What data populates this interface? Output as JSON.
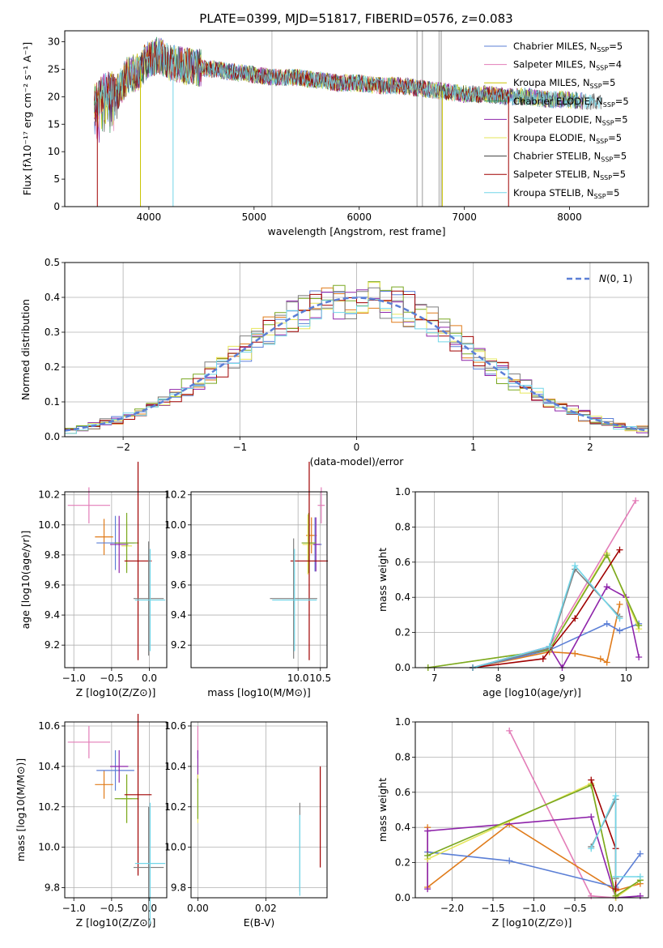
{
  "figure": {
    "title": "PLATE=0399, MJD=51817, FIBERID=0576, z=0.083"
  },
  "colors": {
    "chabrier_miles": "#5b7fd6",
    "salpeter_miles": "#e37db8",
    "kroupa_miles": "#c9c400",
    "chabrier_elodie": "#2e8b57",
    "salpeter_elodie": "#8e24aa",
    "kroupa_elodie": "#e6e65a",
    "chabrier_stelib": "#404040",
    "salpeter_stelib": "#a00000",
    "kroupa_stelib": "#72d6e8",
    "miles_blue": "#5b7fd6",
    "orange": "#e07b1a",
    "olive": "#7aa822",
    "grey": "#7f7f7f"
  },
  "chart_data": [
    {
      "type": "line",
      "id": "spectrum",
      "title": "PLATE=0399, MJD=51817, FIBERID=0576, z=0.083",
      "xlabel": "wavelength [Angstrom, rest frame]",
      "ylabel": "Flux [fλ10⁻¹⁷ erg cm⁻² s⁻¹ A⁻¹]",
      "xlim": [
        3200,
        8750
      ],
      "ylim": [
        0,
        32
      ],
      "xticks": [
        4000,
        5000,
        6000,
        7000,
        8000
      ],
      "yticks": [
        0,
        5,
        10,
        15,
        20,
        25,
        30
      ],
      "grid": false,
      "legend_position": "right",
      "continuum": {
        "x": [
          3500,
          3600,
          3700,
          3800,
          3900,
          4000,
          4100,
          4200,
          4400,
          4600,
          4800,
          5000,
          5200,
          5400,
          5600,
          5800,
          6000,
          6200,
          6400,
          6600,
          6800,
          7000,
          7200,
          7400,
          7600,
          7800,
          8000,
          8200,
          8300
        ],
        "y": [
          19.5,
          21.5,
          21,
          24,
          24.5,
          27,
          27.5,
          26,
          25.5,
          25,
          24.5,
          24,
          23.5,
          23.5,
          23,
          22.5,
          22.5,
          22,
          22,
          21.5,
          21,
          20.5,
          20.5,
          20,
          20,
          19.5,
          19.5,
          19,
          19
        ]
      },
      "series": [
        {
          "name": "Chabrier MILES, N_SSP=5",
          "color_key": "chabrier_miles"
        },
        {
          "name": "Salpeter MILES, N_SSP=4",
          "color_key": "salpeter_miles"
        },
        {
          "name": "Kroupa MILES, N_SSP=5",
          "color_key": "kroupa_miles"
        },
        {
          "name": "Chabrier ELODIE, N_SSP=5",
          "color_key": "chabrier_elodie"
        },
        {
          "name": "Salpeter ELODIE, N_SSP=5",
          "color_key": "salpeter_elodie"
        },
        {
          "name": "Kroupa ELODIE, N_SSP=5",
          "color_key": "kroupa_elodie"
        },
        {
          "name": "Chabrier STELIB, N_SSP=5",
          "color_key": "chabrier_stelib"
        },
        {
          "name": "Salpeter STELIB, N_SSP=5",
          "color_key": "salpeter_stelib"
        },
        {
          "name": "Kroupa STELIB, N_SSP=5",
          "color_key": "kroupa_stelib"
        }
      ]
    },
    {
      "type": "step",
      "id": "residuals",
      "xlabel": "(data-model)/error",
      "ylabel": "Normed distribution",
      "xlim": [
        -2.5,
        2.5
      ],
      "ylim": [
        0,
        0.5
      ],
      "xticks": [
        -2,
        -1,
        0,
        1,
        2
      ],
      "yticks": [
        0.0,
        0.1,
        0.2,
        0.3,
        0.4,
        0.5
      ],
      "grid": true,
      "legend_position": "top-right",
      "reference": {
        "name": "N(0,1)",
        "color_key": "miles_blue"
      },
      "bin_width": 0.1,
      "histogram_colors": [
        "chabrier_miles",
        "orange",
        "olive",
        "salpeter_elodie",
        "kroupa_elodie",
        "grey",
        "salpeter_stelib",
        "kroupa_stelib"
      ]
    },
    {
      "type": "scatter",
      "id": "age_vs_z",
      "xlabel": "Z [log10(Z/Z⊙)]",
      "ylabel": "age  [log10(age/yr)]",
      "xlim": [
        -1.12,
        0.23
      ],
      "ylim": [
        9.05,
        10.22
      ],
      "xticks": [
        -1.0,
        -0.5,
        0.0
      ],
      "yticks": [
        9.2,
        9.4,
        9.6,
        9.8,
        10.0,
        10.2
      ],
      "grid": true,
      "points": [
        {
          "x": -0.8,
          "y": 10.13,
          "xerr": 0.28,
          "yerr": 0.12,
          "color_key": "salpeter_miles"
        },
        {
          "x": -0.6,
          "y": 9.92,
          "xerr": 0.12,
          "yerr": 0.12,
          "color_key": "orange"
        },
        {
          "x": -0.45,
          "y": 9.88,
          "xerr": 0.25,
          "yerr": 0.18,
          "color_key": "chabrier_miles"
        },
        {
          "x": -0.4,
          "y": 9.87,
          "xerr": 0.12,
          "yerr": 0.19,
          "color_key": "salpeter_elodie"
        },
        {
          "x": -0.3,
          "y": 9.86,
          "xerr": 0.07,
          "yerr": 0.16,
          "color_key": "kroupa_elodie"
        },
        {
          "x": -0.3,
          "y": 9.88,
          "xerr": 0.16,
          "yerr": 0.2,
          "color_key": "olive"
        },
        {
          "x": -0.15,
          "y": 9.76,
          "xerr": 0.18,
          "yerr": 0.66,
          "color_key": "salpeter_stelib"
        },
        {
          "x": -0.01,
          "y": 9.51,
          "xerr": 0.2,
          "yerr": 0.38,
          "color_key": "grey"
        },
        {
          "x": 0.01,
          "y": 9.5,
          "xerr": 0.2,
          "yerr": 0.34,
          "color_key": "kroupa_stelib"
        }
      ]
    },
    {
      "type": "scatter",
      "id": "age_vs_mass",
      "xlabel": "mass [log10(M/M⊙)]",
      "ylabel": "",
      "xlim": [
        7.6,
        10.65
      ],
      "ylim": [
        9.05,
        10.22
      ],
      "xticks": [
        10.0,
        10.5
      ],
      "yticks": [
        9.2,
        9.4,
        9.6,
        9.8,
        10.0,
        10.2
      ],
      "grid": true,
      "points": [
        {
          "x": 10.52,
          "y": 10.13,
          "xerr": 0.08,
          "yerr": 0.12,
          "color_key": "salpeter_miles"
        },
        {
          "x": 10.3,
          "y": 9.93,
          "xerr": 0.12,
          "yerr": 0.12,
          "color_key": "orange"
        },
        {
          "x": 10.38,
          "y": 9.87,
          "xerr": 0.15,
          "yerr": 0.18,
          "color_key": "chabrier_miles"
        },
        {
          "x": 10.4,
          "y": 9.87,
          "xerr": 0.1,
          "yerr": 0.18,
          "color_key": "salpeter_elodie"
        },
        {
          "x": 10.22,
          "y": 9.87,
          "xerr": 0.12,
          "yerr": 0.2,
          "color_key": "kroupa_elodie"
        },
        {
          "x": 10.24,
          "y": 9.88,
          "xerr": 0.16,
          "yerr": 0.2,
          "color_key": "olive"
        },
        {
          "x": 10.25,
          "y": 9.76,
          "xerr": 0.42,
          "yerr": 0.66,
          "color_key": "salpeter_stelib"
        },
        {
          "x": 9.9,
          "y": 9.51,
          "xerr": 0.53,
          "yerr": 0.4,
          "color_key": "grey"
        },
        {
          "x": 9.92,
          "y": 9.5,
          "xerr": 0.5,
          "yerr": 0.34,
          "color_key": "kroupa_stelib"
        }
      ]
    },
    {
      "type": "line",
      "id": "weight_vs_age",
      "xlabel": "age  [log10(age/yr)]",
      "ylabel": "mass weight",
      "xlim": [
        6.7,
        10.35
      ],
      "ylim": [
        0,
        1
      ],
      "xticks": [
        7,
        8,
        9,
        10
      ],
      "yticks": [
        0.0,
        0.2,
        0.4,
        0.6,
        0.8,
        1.0
      ],
      "grid": true,
      "series": [
        {
          "color_key": "salpeter_miles",
          "points": [
            [
              7.6,
              0.0
            ],
            [
              8.8,
              0.12
            ],
            [
              10.15,
              0.95
            ]
          ]
        },
        {
          "color_key": "orange",
          "points": [
            [
              7.6,
              0.0
            ],
            [
              8.8,
              0.09
            ],
            [
              9.2,
              0.08
            ],
            [
              9.6,
              0.05
            ],
            [
              9.7,
              0.03
            ],
            [
              9.9,
              0.36
            ]
          ]
        },
        {
          "color_key": "chabrier_miles",
          "points": [
            [
              7.6,
              0.0
            ],
            [
              8.8,
              0.1
            ],
            [
              9.7,
              0.25
            ],
            [
              9.9,
              0.21
            ],
            [
              10.2,
              0.25
            ]
          ]
        },
        {
          "color_key": "salpeter_elodie",
          "points": [
            [
              7.6,
              0.0
            ],
            [
              8.8,
              0.12
            ],
            [
              9.0,
              0.0
            ],
            [
              9.7,
              0.46
            ],
            [
              10.0,
              0.4
            ],
            [
              10.2,
              0.06
            ]
          ]
        },
        {
          "color_key": "kroupa_elodie",
          "points": [
            [
              6.9,
              0.0
            ],
            [
              8.8,
              0.1
            ],
            [
              9.7,
              0.65
            ],
            [
              10.2,
              0.22
            ]
          ]
        },
        {
          "color_key": "olive",
          "points": [
            [
              6.9,
              0.0
            ],
            [
              8.8,
              0.1
            ],
            [
              9.7,
              0.64
            ],
            [
              10.2,
              0.24
            ]
          ]
        },
        {
          "color_key": "salpeter_stelib",
          "points": [
            [
              7.6,
              0.0
            ],
            [
              8.7,
              0.05
            ],
            [
              9.2,
              0.28
            ],
            [
              9.9,
              0.67
            ]
          ]
        },
        {
          "color_key": "grey",
          "points": [
            [
              7.6,
              0.0
            ],
            [
              8.8,
              0.11
            ],
            [
              9.2,
              0.56
            ],
            [
              9.9,
              0.29
            ]
          ]
        },
        {
          "color_key": "kroupa_stelib",
          "points": [
            [
              7.6,
              0.0
            ],
            [
              8.8,
              0.12
            ],
            [
              9.2,
              0.58
            ],
            [
              9.9,
              0.28
            ]
          ]
        }
      ]
    },
    {
      "type": "scatter",
      "id": "mass_vs_z",
      "xlabel": "Z [log10(Z/Z⊙)]",
      "ylabel": "mass [log10(M/M⊙)]",
      "xlim": [
        -1.12,
        0.23
      ],
      "ylim": [
        9.75,
        10.62
      ],
      "xticks": [
        -1.0,
        -0.5,
        0.0
      ],
      "yticks": [
        9.8,
        10.0,
        10.2,
        10.4,
        10.6
      ],
      "grid": true,
      "points": [
        {
          "x": -0.8,
          "y": 10.52,
          "xerr": 0.28,
          "yerr": 0.08,
          "color_key": "salpeter_miles"
        },
        {
          "x": -0.6,
          "y": 10.31,
          "xerr": 0.12,
          "yerr": 0.07,
          "color_key": "orange"
        },
        {
          "x": -0.45,
          "y": 10.38,
          "xerr": 0.25,
          "yerr": 0.1,
          "color_key": "chabrier_miles"
        },
        {
          "x": -0.4,
          "y": 10.4,
          "xerr": 0.12,
          "yerr": 0.08,
          "color_key": "salpeter_elodie"
        },
        {
          "x": -0.3,
          "y": 10.24,
          "xerr": 0.07,
          "yerr": 0.12,
          "color_key": "kroupa_elodie"
        },
        {
          "x": -0.3,
          "y": 10.24,
          "xerr": 0.16,
          "yerr": 0.12,
          "color_key": "olive"
        },
        {
          "x": -0.15,
          "y": 10.26,
          "xerr": 0.18,
          "yerr": 0.4,
          "color_key": "salpeter_stelib"
        },
        {
          "x": -0.01,
          "y": 9.9,
          "xerr": 0.2,
          "yerr": 0.3,
          "color_key": "grey"
        },
        {
          "x": 0.01,
          "y": 9.92,
          "xerr": 0.2,
          "yerr": 0.3,
          "color_key": "kroupa_stelib"
        }
      ]
    },
    {
      "type": "scatter",
      "id": "mass_vs_ebv",
      "xlabel": "E(B-V)",
      "ylabel": "",
      "xlim": [
        -0.002,
        0.038
      ],
      "ylim": [
        9.75,
        10.62
      ],
      "xticks": [
        0.0,
        0.02
      ],
      "yticks": [
        9.8,
        10.0,
        10.2,
        10.4,
        10.6
      ],
      "grid": true,
      "points": [
        {
          "x": 0.0,
          "y": 10.52,
          "xerr": 0,
          "yerr": 0.08,
          "color_key": "salpeter_miles"
        },
        {
          "x": 0.0,
          "y": 10.4,
          "xerr": 0,
          "yerr": 0.08,
          "color_key": "salpeter_elodie"
        },
        {
          "x": 0.0,
          "y": 10.24,
          "xerr": 0,
          "yerr": 0.12,
          "color_key": "kroupa_elodie"
        },
        {
          "x": 0.0,
          "y": 10.24,
          "xerr": 0,
          "yerr": 0.1,
          "color_key": "olive"
        },
        {
          "x": 0.03,
          "y": 10.0,
          "xerr": 0,
          "yerr": 0.22,
          "color_key": "grey"
        },
        {
          "x": 0.03,
          "y": 9.96,
          "xerr": 0,
          "yerr": 0.2,
          "color_key": "kroupa_stelib"
        },
        {
          "x": 0.036,
          "y": 10.15,
          "xerr": 0,
          "yerr": 0.25,
          "color_key": "salpeter_stelib"
        }
      ]
    },
    {
      "type": "line",
      "id": "weight_vs_z",
      "xlabel": "Z [log10(Z/Z⊙)]",
      "ylabel": "mass weight",
      "xlim": [
        -2.45,
        0.4
      ],
      "ylim": [
        0,
        1
      ],
      "xticks": [
        -2.0,
        -1.5,
        -1.0,
        -0.5,
        0.0
      ],
      "yticks": [
        0.0,
        0.2,
        0.4,
        0.6,
        0.8,
        1.0
      ],
      "grid": true,
      "series": [
        {
          "color_key": "salpeter_miles",
          "points": [
            [
              -1.3,
              0.95
            ],
            [
              -0.3,
              0.01
            ],
            [
              0.0,
              0.0
            ]
          ]
        },
        {
          "color_key": "orange",
          "points": [
            [
              -2.3,
              0.4
            ],
            [
              -2.3,
              0.06
            ],
            [
              -1.3,
              0.42
            ],
            [
              0.0,
              0.04
            ],
            [
              0.3,
              0.08
            ]
          ]
        },
        {
          "color_key": "chabrier_miles",
          "points": [
            [
              -2.3,
              0.26
            ],
            [
              -1.3,
              0.21
            ],
            [
              0.0,
              0.06
            ],
            [
              0.3,
              0.25
            ]
          ]
        },
        {
          "color_key": "salpeter_elodie",
          "points": [
            [
              -2.3,
              0.05
            ],
            [
              -2.3,
              0.38
            ],
            [
              -0.3,
              0.46
            ],
            [
              0.0,
              0.0
            ],
            [
              0.3,
              0.01
            ]
          ]
        },
        {
          "color_key": "kroupa_elodie",
          "points": [
            [
              -2.3,
              0.22
            ],
            [
              -0.3,
              0.65
            ],
            [
              0.0,
              0.0
            ],
            [
              0.3,
              0.1
            ]
          ]
        },
        {
          "color_key": "olive",
          "points": [
            [
              -2.3,
              0.24
            ],
            [
              -0.3,
              0.64
            ],
            [
              0.0,
              0.01
            ],
            [
              0.3,
              0.1
            ]
          ]
        },
        {
          "color_key": "salpeter_stelib",
          "points": [
            [
              -0.3,
              0.67
            ],
            [
              0.0,
              0.28
            ],
            [
              0.0,
              0.05
            ]
          ]
        },
        {
          "color_key": "grey",
          "points": [
            [
              -0.3,
              0.29
            ],
            [
              0.0,
              0.56
            ],
            [
              0.0,
              0.11
            ]
          ]
        },
        {
          "color_key": "kroupa_stelib",
          "points": [
            [
              -0.3,
              0.28
            ],
            [
              0.0,
              0.58
            ],
            [
              0.0,
              0.12
            ],
            [
              0.3,
              0.12
            ]
          ]
        }
      ]
    }
  ]
}
